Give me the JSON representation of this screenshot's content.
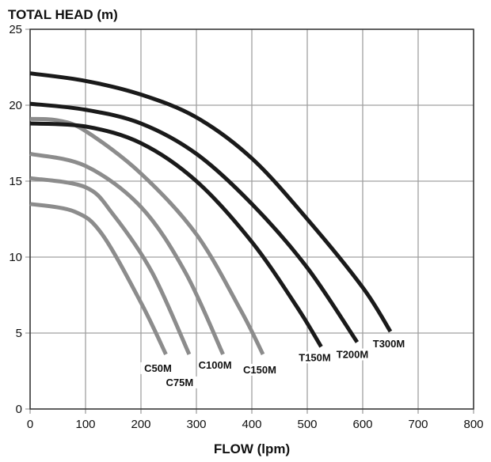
{
  "chart_data": {
    "type": "line",
    "title": "TOTAL HEAD (m)",
    "xlabel": "FLOW (lpm)",
    "ylabel": "TOTAL HEAD (m)",
    "xlim": [
      0,
      800
    ],
    "ylim": [
      0,
      25
    ],
    "xticks": [
      0,
      100,
      200,
      300,
      400,
      500,
      600,
      700,
      800
    ],
    "yticks": [
      0,
      5,
      10,
      15,
      20,
      25
    ],
    "grid": true,
    "colors": {
      "T": "#1a1a1a",
      "C": "#8c8c8c",
      "grid": "#a0a0a0"
    },
    "series": [
      {
        "name": "C50M",
        "color": "#8c8c8c",
        "x": [
          0,
          80,
          130,
          200,
          245
        ],
        "y": [
          13.5,
          13.0,
          11.5,
          7.0,
          3.6
        ]
      },
      {
        "name": "C75M",
        "color": "#8c8c8c",
        "x": [
          0,
          100,
          150,
          220,
          287
        ],
        "y": [
          15.2,
          14.6,
          12.8,
          9.0,
          3.6
        ]
      },
      {
        "name": "C100M",
        "color": "#8c8c8c",
        "x": [
          0,
          100,
          200,
          280,
          348
        ],
        "y": [
          16.8,
          16.0,
          13.3,
          9.0,
          3.6
        ]
      },
      {
        "name": "C150M",
        "color": "#8c8c8c",
        "x": [
          0,
          50,
          100,
          200,
          300,
          380,
          420
        ],
        "y": [
          19.1,
          19.0,
          18.3,
          15.5,
          11.5,
          6.5,
          3.6
        ]
      },
      {
        "name": "T150M",
        "color": "#1a1a1a",
        "x": [
          0,
          100,
          200,
          300,
          400,
          480,
          525
        ],
        "y": [
          18.8,
          18.6,
          17.5,
          15.0,
          11.0,
          6.8,
          4.1
        ]
      },
      {
        "name": "T200M",
        "color": "#1a1a1a",
        "x": [
          0,
          100,
          200,
          300,
          400,
          500,
          590
        ],
        "y": [
          20.1,
          19.7,
          18.8,
          16.8,
          13.5,
          9.3,
          4.4
        ]
      },
      {
        "name": "T300M",
        "color": "#1a1a1a",
        "x": [
          0,
          100,
          200,
          300,
          400,
          500,
          600,
          650
        ],
        "y": [
          22.1,
          21.6,
          20.7,
          19.2,
          16.5,
          12.5,
          8.0,
          5.1
        ]
      }
    ]
  }
}
